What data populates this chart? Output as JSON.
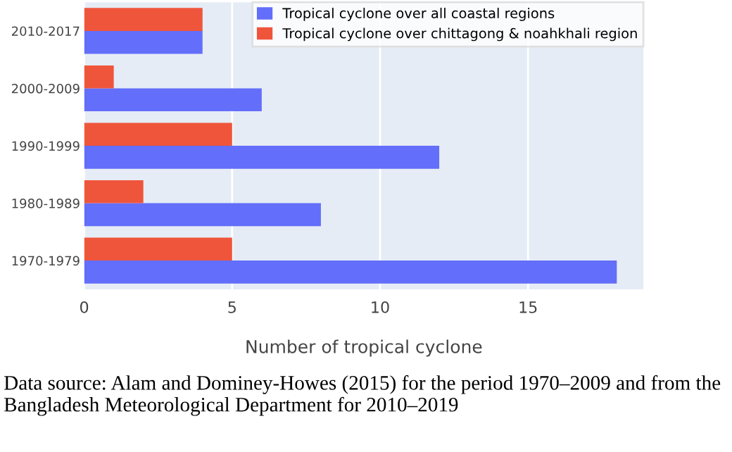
{
  "chart_data": {
    "type": "bar",
    "orientation": "horizontal",
    "categories": [
      "2010-2017",
      "2000-2009",
      "1990-1999",
      "1980-1989",
      "1970-1979"
    ],
    "series": [
      {
        "name": "Tropical cyclone over all coastal regions",
        "color": "#636efa",
        "values": [
          4,
          6,
          12,
          8,
          18
        ]
      },
      {
        "name": "Tropical cyclone over chittagong & noahkhali region",
        "color": "#ef553b",
        "values": [
          4,
          1,
          5,
          2,
          5
        ]
      }
    ],
    "xlim": [
      0,
      18.9
    ],
    "xticks": [
      0,
      5,
      10,
      15
    ],
    "xlabel": "Number of tropical cyclone",
    "grid": "x",
    "legend": "top right",
    "annotations": [
      "Data source: Alam and Dominey-Howes (2015) for the period 1970–2009 and from the Bangladesh Meteorological Department for 2010–2019"
    ]
  }
}
